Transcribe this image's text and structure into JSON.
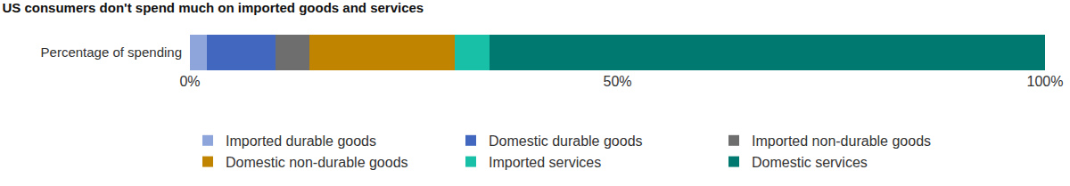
{
  "chart_data": {
    "type": "bar",
    "title": "US consumers don't spend much on imported goods and services",
    "orientation": "horizontal",
    "stacked": true,
    "grid": true,
    "legend": "bottom",
    "categories": [
      "Percentage of spending"
    ],
    "series": [
      {
        "name": "Imported durable goods",
        "color": "#8ea5dc",
        "values": [
          2
        ]
      },
      {
        "name": "Domestic durable goods",
        "color": "#4267be",
        "values": [
          8
        ]
      },
      {
        "name": "Imported non-durable goods",
        "color": "#6e6e6e",
        "values": [
          4
        ]
      },
      {
        "name": "Domestic non-durable goods",
        "color": "#c08400",
        "values": [
          17
        ]
      },
      {
        "name": "Imported services",
        "color": "#17c0a6",
        "values": [
          4
        ]
      },
      {
        "name": "Domestic services",
        "color": "#007a70",
        "values": [
          65
        ]
      }
    ],
    "xlim": [
      0,
      100
    ],
    "xticks": [
      {
        "value": 0,
        "label": "0%"
      },
      {
        "value": 50,
        "label": "50%"
      },
      {
        "value": 100,
        "label": "100%"
      }
    ]
  }
}
